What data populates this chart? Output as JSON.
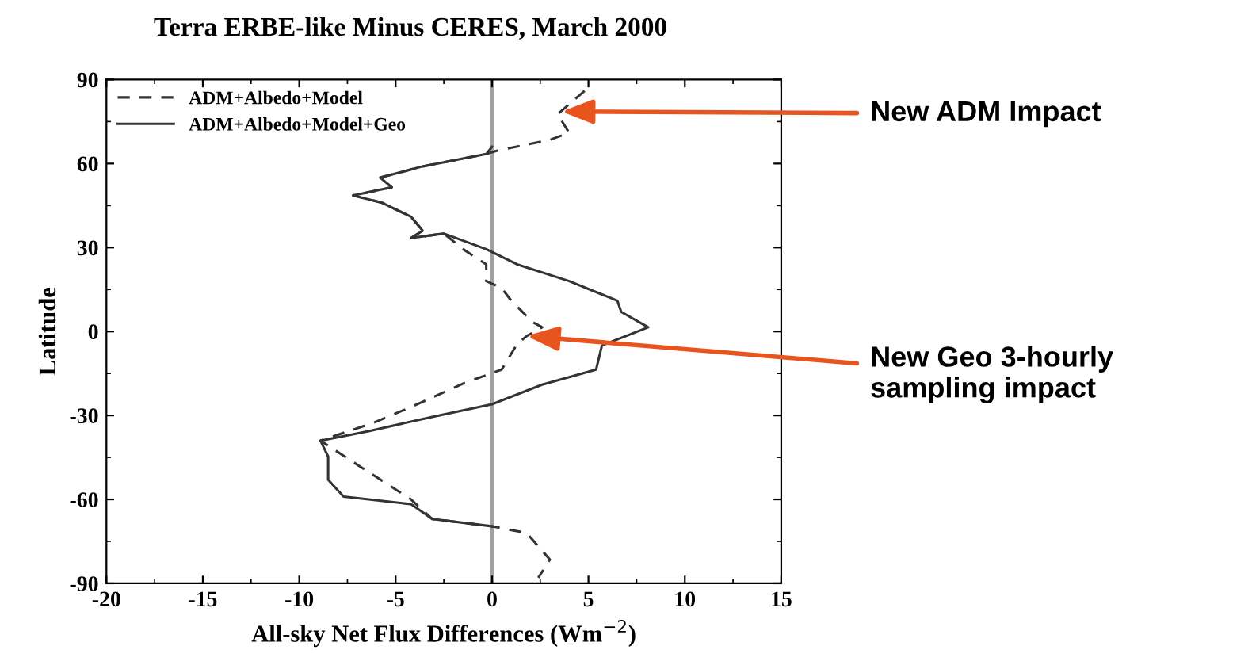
{
  "chart_data": {
    "type": "line",
    "title": "Terra ERBE-like Minus CERES, March 2000",
    "xlabel": "All-sky Net Flux Differences (Wm$^{−2}$)",
    "ylabel": "Latitude",
    "xlim": [
      -20,
      15
    ],
    "xticks": [
      -20,
      -15,
      -10,
      -5,
      0,
      5,
      10,
      15
    ],
    "ylim": [
      -90,
      90
    ],
    "yticks": [
      -90,
      -60,
      -30,
      0,
      30,
      60,
      90
    ],
    "legend": "top left",
    "grid": false,
    "ref_lines": [
      {
        "axis": "x",
        "value": 0,
        "color": "#a0a0a0"
      }
    ],
    "series": [
      {
        "name": "ADM+Albedo+Model",
        "color": "#333333",
        "line_style": "dashed",
        "x": [
          4.8,
          3.4,
          4.0,
          3.0,
          0.2,
          -0.3,
          -3.6,
          -5.8,
          -5.2,
          -7.2,
          -5.7,
          -4.2,
          -3.6,
          -4.2,
          -2.5,
          -1.5,
          -0.3,
          -0.3,
          0.5,
          1.0,
          2.1,
          2.6,
          1.8,
          1.3,
          0.5,
          -1.5,
          -4.2,
          -6.1,
          -8.9,
          -6.9,
          -4.2,
          -3.1,
          0,
          1.8,
          3.0,
          2.4
        ],
        "values": [
          86,
          77.6,
          71,
          68.5,
          64.5,
          63.4,
          59,
          55,
          51.5,
          48.6,
          46,
          41,
          36,
          33.4,
          35,
          29.4,
          24,
          18,
          15.5,
          11,
          3.4,
          1.5,
          -1.6,
          -4.5,
          -13.6,
          -18.6,
          -27,
          -32.5,
          -39,
          -48,
          -60,
          -67,
          -69.6,
          -72,
          -81.5,
          -88
        ]
      },
      {
        "name": "ADM+Albedo+Model+Geo",
        "color": "#333333",
        "line_style": "solid",
        "x": [
          0,
          -0.3,
          -3.6,
          -5.8,
          -5.2,
          -7.2,
          -5.7,
          -4.2,
          -3.6,
          -4.2,
          -2.5,
          -0.3,
          1.3,
          4.0,
          6.5,
          6.7,
          8.1,
          5.7,
          5.4,
          2.6,
          0,
          -3.1,
          -6.4,
          -8.9,
          -8.5,
          -8.5,
          -7.7,
          -4.2,
          -3.1,
          0
        ],
        "values": [
          66,
          63.4,
          59,
          55,
          51.5,
          48.6,
          46,
          41,
          36,
          33.4,
          35,
          29.4,
          24,
          18,
          11,
          7,
          1.5,
          -5,
          -13.6,
          -19,
          -26,
          -30.5,
          -35.6,
          -39,
          -44.7,
          -53,
          -59,
          -61.7,
          -67,
          -69.6
        ]
      }
    ],
    "annotations": [
      {
        "text": "New ADM Impact",
        "x": 3.6,
        "y": 78.6
      },
      {
        "text": "New Geo 3-hourly\nsampling impact",
        "x": 1.8,
        "y": -1.6
      }
    ]
  }
}
